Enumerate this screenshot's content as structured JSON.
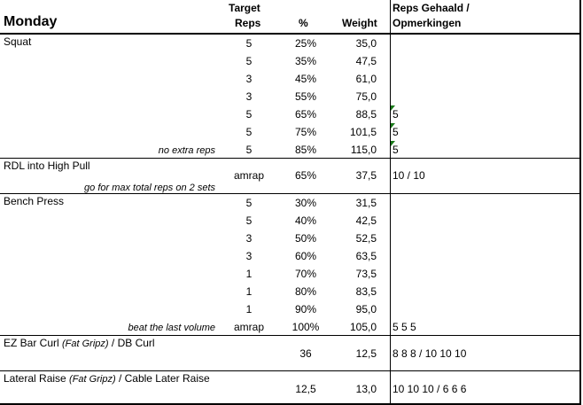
{
  "header": {
    "day": "Monday",
    "reps_line1": "Target",
    "reps_line2": "Reps",
    "pct": "%",
    "weight": "Weight",
    "notes_line1": "Reps Gehaald /",
    "notes_line2": "Opmerkingen"
  },
  "comment_marker_color": "#1a7a1a",
  "blocks": [
    {
      "name": "Squat",
      "note": "no extra reps",
      "rows": [
        {
          "reps": "5",
          "pct": "25%",
          "weight": "35,0",
          "done": ""
        },
        {
          "reps": "5",
          "pct": "35%",
          "weight": "47,5",
          "done": ""
        },
        {
          "reps": "3",
          "pct": "45%",
          "weight": "61,0",
          "done": ""
        },
        {
          "reps": "3",
          "pct": "55%",
          "weight": "75,0",
          "done": ""
        },
        {
          "reps": "5",
          "pct": "65%",
          "weight": "88,5",
          "done": "5",
          "comment": true
        },
        {
          "reps": "5",
          "pct": "75%",
          "weight": "101,5",
          "done": "5",
          "comment": true
        },
        {
          "reps": "5",
          "pct": "85%",
          "weight": "115,0",
          "done": "5",
          "comment": true
        }
      ]
    },
    {
      "name": "RDL into High Pull",
      "note": "go for max total reps on 2 sets",
      "single": true,
      "rows": [
        {
          "reps": "amrap",
          "pct": "65%",
          "weight": "37,5",
          "done": "10 / 10"
        }
      ]
    },
    {
      "name": "Bench Press",
      "note": "beat the last volume",
      "rows": [
        {
          "reps": "5",
          "pct": "30%",
          "weight": "31,5",
          "done": ""
        },
        {
          "reps": "5",
          "pct": "40%",
          "weight": "42,5",
          "done": ""
        },
        {
          "reps": "3",
          "pct": "50%",
          "weight": "52,5",
          "done": ""
        },
        {
          "reps": "3",
          "pct": "60%",
          "weight": "63,5",
          "done": ""
        },
        {
          "reps": "1",
          "pct": "70%",
          "weight": "73,5",
          "done": ""
        },
        {
          "reps": "1",
          "pct": "80%",
          "weight": "83,5",
          "done": ""
        },
        {
          "reps": "1",
          "pct": "90%",
          "weight": "95,0",
          "done": ""
        },
        {
          "reps": "amrap",
          "pct": "100%",
          "weight": "105,0",
          "done": "5 5 5"
        }
      ]
    },
    {
      "name_parts": [
        "EZ Bar Curl ",
        "(Fat Gripz)",
        " / DB Curl"
      ],
      "single": true,
      "rows": [
        {
          "reps": "",
          "pct": "36",
          "weight": "12,5",
          "done": "8 8 8 / 10 10 10"
        }
      ]
    },
    {
      "name_parts": [
        "Lateral Raise ",
        "(Fat Gripz)",
        "  / Cable Later Raise"
      ],
      "single": true,
      "rows": [
        {
          "reps": "",
          "pct": "12,5",
          "weight": "13,0",
          "done": "10 10 10 / 6 6 6"
        }
      ]
    }
  ]
}
